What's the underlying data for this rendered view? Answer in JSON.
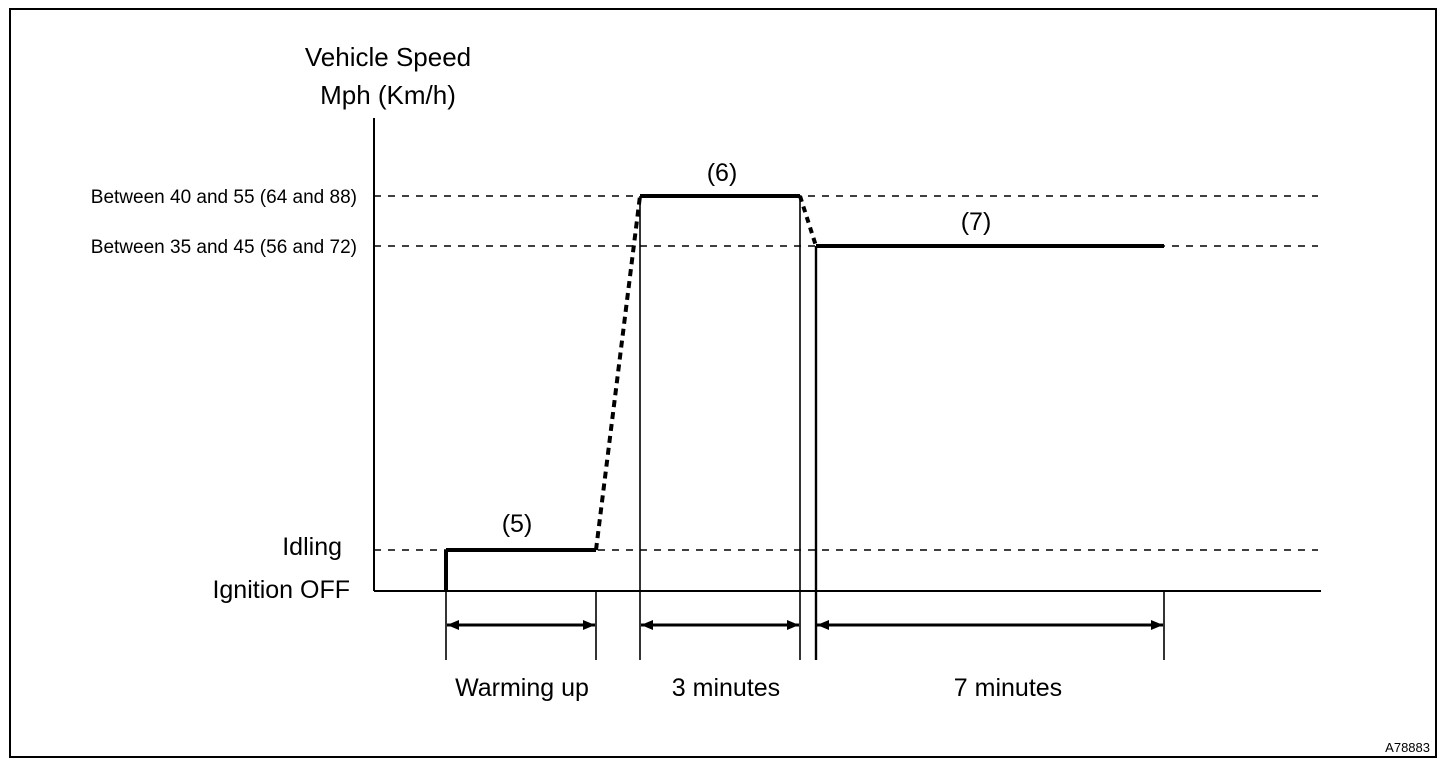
{
  "y_axis_title": [
    "Vehicle Speed",
    "Mph (Km/h)"
  ],
  "levels": {
    "high": "Between 40 and 55 (64 and 88)",
    "mid": "Between 35 and 45 (56 and 72)",
    "idle": "Idling",
    "off": "Ignition OFF"
  },
  "segments": {
    "s5": "(5)",
    "s6": "(6)",
    "s7": "(7)"
  },
  "durations": {
    "warm": "Warming up",
    "three": "3 minutes",
    "seven": "7 minutes"
  },
  "figure_id": "A78883"
}
